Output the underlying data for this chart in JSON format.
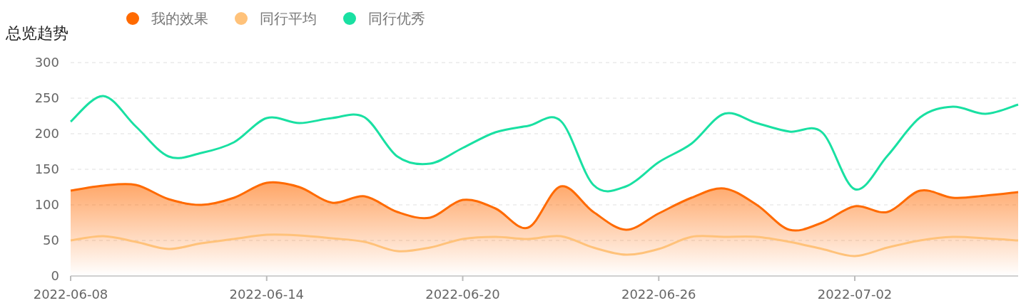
{
  "chart_data": {
    "type": "line",
    "title": "总览趋势",
    "x": [
      "2022-06-08",
      "2022-06-09",
      "2022-06-10",
      "2022-06-11",
      "2022-06-12",
      "2022-06-13",
      "2022-06-14",
      "2022-06-15",
      "2022-06-16",
      "2022-06-17",
      "2022-06-18",
      "2022-06-19",
      "2022-06-20",
      "2022-06-21",
      "2022-06-22",
      "2022-06-23",
      "2022-06-24",
      "2022-06-25",
      "2022-06-26",
      "2022-06-27",
      "2022-06-28",
      "2022-06-29",
      "2022-06-30",
      "2022-07-01",
      "2022-07-02",
      "2022-07-03",
      "2022-07-04",
      "2022-07-05",
      "2022-07-06",
      "2022-07-07"
    ],
    "series": [
      {
        "name": "我的效果",
        "type": "area",
        "color": "#ff6a00",
        "values": [
          120,
          127,
          128,
          108,
          100,
          110,
          131,
          125,
          103,
          112,
          90,
          82,
          107,
          95,
          68,
          126,
          90,
          65,
          88,
          110,
          123,
          100,
          65,
          75,
          98,
          90,
          120,
          110,
          113,
          118
        ]
      },
      {
        "name": "同行平均",
        "type": "line",
        "color": "#ffc27a",
        "values": [
          50,
          56,
          48,
          38,
          46,
          52,
          58,
          57,
          53,
          48,
          35,
          40,
          52,
          55,
          52,
          56,
          40,
          30,
          38,
          55,
          55,
          55,
          48,
          38,
          28,
          40,
          50,
          55,
          53,
          50
        ]
      },
      {
        "name": "同行优秀",
        "type": "line",
        "color": "#19e0a2",
        "values": [
          217,
          253,
          210,
          168,
          173,
          188,
          222,
          215,
          222,
          223,
          168,
          158,
          180,
          202,
          211,
          218,
          128,
          126,
          160,
          186,
          228,
          215,
          203,
          202,
          122,
          169,
          223,
          238,
          228,
          241
        ]
      }
    ],
    "xlim": [
      "2022-06-08",
      "2022-07-07"
    ],
    "xticks": [
      "2022-06-08",
      "2022-06-14",
      "2022-06-20",
      "2022-06-26",
      "2022-07-02"
    ],
    "ylim": [
      0,
      300
    ],
    "yticks": [
      0,
      50,
      100,
      150,
      200,
      250,
      300
    ],
    "grid": "y",
    "legend": "top",
    "line_style": "solid"
  }
}
